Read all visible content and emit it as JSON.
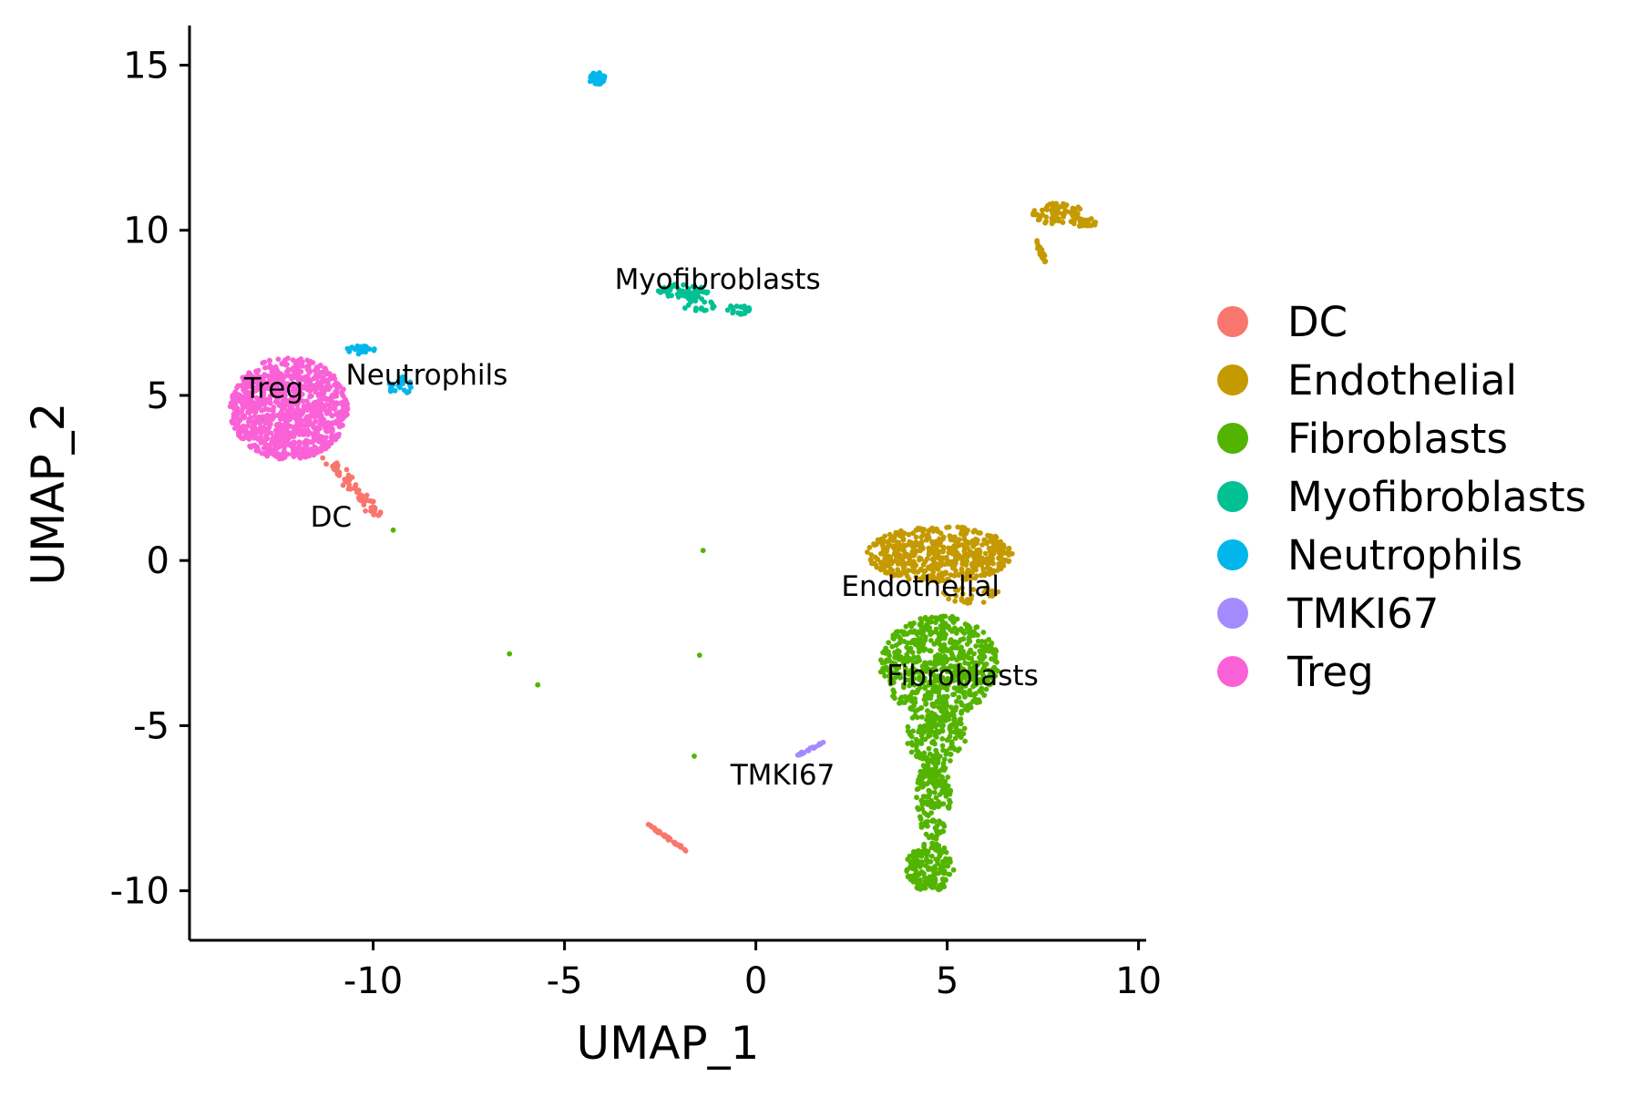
{
  "chart_data": {
    "type": "scatter",
    "title": "",
    "xlabel": "UMAP_1",
    "ylabel": "UMAP_2",
    "xlim": [
      -14.8,
      10.2
    ],
    "ylim": [
      -11.5,
      16.2
    ],
    "x_ticks": [
      -10,
      -5,
      0,
      5,
      10
    ],
    "x_tick_labels": [
      "-10",
      "-5",
      "0",
      "5",
      "10"
    ],
    "y_ticks": [
      -10,
      -5,
      0,
      5,
      10,
      15
    ],
    "y_tick_labels": [
      "-10",
      "-5",
      "0",
      "5",
      "10",
      "15"
    ],
    "grid": false,
    "legend_position": "right",
    "series": [
      {
        "name": "DC",
        "color": "#F8766D",
        "clusters": [
          {
            "points": [
              [
                -11.2,
                3.0
              ],
              [
                -10.8,
                2.6
              ],
              [
                -10.5,
                2.2
              ],
              [
                -10.2,
                1.8
              ],
              [
                -9.9,
                1.4
              ]
            ],
            "spread": 0.28,
            "count": 70
          },
          {
            "points": [
              [
                -2.8,
                -8.0
              ],
              [
                -1.8,
                -8.8
              ]
            ],
            "spread": 0.06,
            "count": 40
          },
          {
            "points": [
              [
                -12.9,
                3.8
              ],
              [
                -12.7,
                4.1
              ]
            ],
            "spread": 0.2,
            "count": 6
          }
        ]
      },
      {
        "name": "Endothelial",
        "color": "#C49A00",
        "clusters": [
          {
            "cx": 4.8,
            "cy": 0.2,
            "rx": 1.9,
            "ry": 0.85,
            "count": 520
          },
          {
            "cx": 5.6,
            "cy": -1.0,
            "rx": 0.8,
            "ry": 0.3,
            "count": 30
          },
          {
            "cx": 7.9,
            "cy": 10.5,
            "rx": 0.7,
            "ry": 0.32,
            "count": 70
          },
          {
            "cx": 8.6,
            "cy": 10.25,
            "rx": 0.35,
            "ry": 0.15,
            "count": 25
          },
          {
            "points": [
              [
                7.3,
                9.7
              ],
              [
                7.6,
                9.0
              ]
            ],
            "spread": 0.1,
            "count": 18
          }
        ]
      },
      {
        "name": "Fibroblasts",
        "color": "#53B400",
        "clusters": [
          {
            "cx": 4.8,
            "cy": -3.2,
            "rx": 1.55,
            "ry": 1.55,
            "count": 650
          },
          {
            "cx": 4.7,
            "cy": -5.3,
            "rx": 0.8,
            "ry": 0.9,
            "count": 160
          },
          {
            "cx": 4.65,
            "cy": -7.2,
            "rx": 0.45,
            "ry": 1.3,
            "count": 170
          },
          {
            "cx": 4.55,
            "cy": -9.3,
            "rx": 0.62,
            "ry": 0.75,
            "count": 180
          },
          {
            "points": [
              [
                -9.8,
                1.3
              ],
              [
                -1.7,
                -8.7
              ],
              [
                -1.1,
                7.35
              ]
            ],
            "spread": 0.05,
            "count": 6
          }
        ]
      },
      {
        "name": "Myofibroblasts",
        "color": "#00C094",
        "clusters": [
          {
            "cx": -1.9,
            "cy": 8.15,
            "rx": 0.7,
            "ry": 0.22,
            "count": 55
          },
          {
            "cx": -1.5,
            "cy": 7.75,
            "rx": 0.45,
            "ry": 0.25,
            "count": 20
          },
          {
            "cx": -0.45,
            "cy": 7.6,
            "rx": 0.3,
            "ry": 0.15,
            "count": 20
          },
          {
            "points": [
              [
                -12.85,
                4.25
              ]
            ],
            "spread": 0.04,
            "count": 2
          }
        ]
      },
      {
        "name": "Neutrophils",
        "color": "#00B6EB",
        "clusters": [
          {
            "cx": -4.15,
            "cy": 14.6,
            "rx": 0.22,
            "ry": 0.18,
            "count": 40
          },
          {
            "cx": -10.3,
            "cy": 6.4,
            "rx": 0.38,
            "ry": 0.15,
            "count": 22
          },
          {
            "cx": -9.3,
            "cy": 5.3,
            "rx": 0.3,
            "ry": 0.3,
            "count": 22
          }
        ]
      },
      {
        "name": "TMKI67",
        "color": "#A58AFF",
        "clusters": [
          {
            "points": [
              [
                1.1,
                -5.9
              ],
              [
                1.8,
                -5.5
              ]
            ],
            "spread": 0.06,
            "count": 24
          }
        ]
      },
      {
        "name": "Treg",
        "color": "#FB61D7",
        "clusters": [
          {
            "cx": -12.2,
            "cy": 4.6,
            "rx": 1.55,
            "ry": 1.55,
            "count": 1000
          }
        ]
      }
    ],
    "cluster_labels": [
      {
        "text": "Myofibroblasts",
        "x": -1.0,
        "y": 8.5
      },
      {
        "text": "Neutrophils",
        "x": -8.6,
        "y": 5.6
      },
      {
        "text": "Treg",
        "x": -12.6,
        "y": 5.2
      },
      {
        "text": "DC",
        "x": -11.1,
        "y": 1.3
      },
      {
        "text": "Endothelial",
        "x": 4.3,
        "y": -0.8
      },
      {
        "text": "Fibroblasts",
        "x": 5.4,
        "y": -3.5
      },
      {
        "text": "TMKI67",
        "x": 0.7,
        "y": -6.5
      }
    ]
  }
}
